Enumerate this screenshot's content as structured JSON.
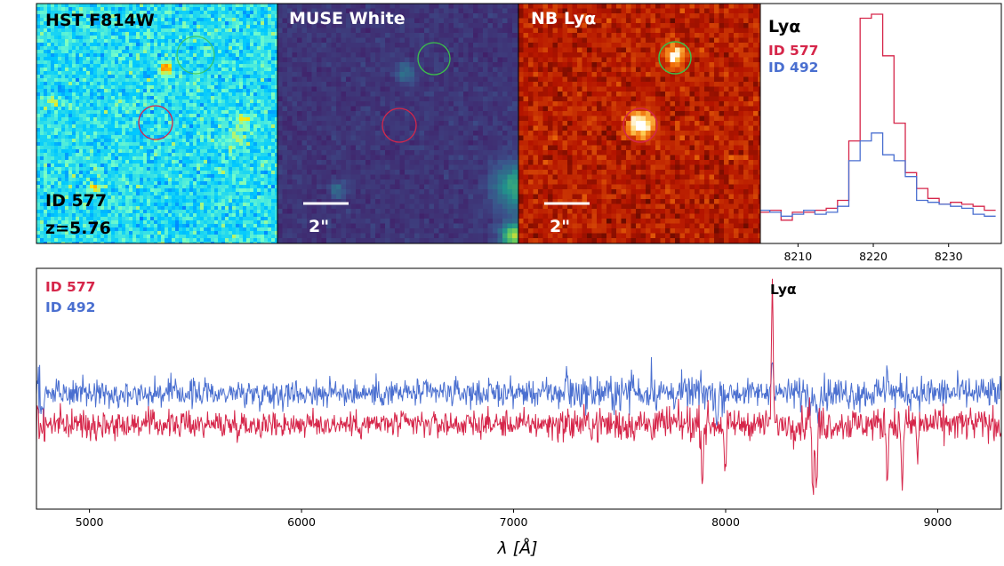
{
  "panels": {
    "hst": {
      "title": "HST F814W",
      "id_label": "ID 577",
      "redshift": "z=5.76"
    },
    "muse": {
      "title": "MUSE White",
      "scale": "2\""
    },
    "nb": {
      "title": "NB Lyα",
      "scale": "2\""
    }
  },
  "colors": {
    "id577": "#d6264a",
    "id492": "#4a6fd0",
    "aperture_red": "#d6264a",
    "aperture_green": "#3cc04a"
  },
  "chart_data": [
    {
      "type": "line",
      "name": "lya-zoom",
      "title": "Lyα",
      "xlim": [
        8205,
        8237
      ],
      "xticks": [
        8210,
        8220,
        8230
      ],
      "legend": [
        "ID 577",
        "ID 492"
      ],
      "legend_position": "top-left",
      "series": [
        {
          "name": "ID 577",
          "drawstyle": "steps",
          "x": [
            8205.5,
            8207,
            8208.5,
            8210,
            8211.5,
            8213,
            8214.5,
            8216,
            8217.5,
            8219,
            8220.5,
            8222,
            8223.5,
            8225,
            8226.5,
            8228,
            8229.5,
            8231,
            8232.5,
            8234,
            8235.5
          ],
          "y": [
            0.0,
            0.01,
            -0.04,
            0.0,
            0.0,
            0.01,
            0.02,
            0.06,
            0.36,
            0.98,
            1.0,
            0.79,
            0.45,
            0.2,
            0.12,
            0.07,
            0.04,
            0.05,
            0.04,
            0.03,
            0.01
          ]
        },
        {
          "name": "ID 492",
          "drawstyle": "steps",
          "x": [
            8205.5,
            8207,
            8208.5,
            8210,
            8211.5,
            8213,
            8214.5,
            8216,
            8217.5,
            8219,
            8220.5,
            8222,
            8223.5,
            8225,
            8226.5,
            8228,
            8229.5,
            8231,
            8232.5,
            8234,
            8235.5
          ],
          "y": [
            0.01,
            0.0,
            -0.02,
            -0.01,
            0.01,
            -0.01,
            0.0,
            0.03,
            0.26,
            0.36,
            0.4,
            0.29,
            0.26,
            0.18,
            0.06,
            0.05,
            0.04,
            0.03,
            0.02,
            -0.01,
            -0.02
          ]
        }
      ]
    },
    {
      "type": "line",
      "name": "full-spectrum",
      "xlabel": "λ [Å]",
      "xlim": [
        4750,
        9300
      ],
      "xticks": [
        5000,
        6000,
        7000,
        8000,
        9000
      ],
      "annotation": {
        "text": "Lyα",
        "x": 8220
      },
      "legend": [
        "ID 577",
        "ID 492"
      ],
      "legend_position": "top-left",
      "series": [
        {
          "name": "ID 577",
          "baseline": 0,
          "noise": 0.85,
          "features": [
            [
              8220,
              10.0
            ],
            [
              8395,
              1.5
            ],
            [
              8412,
              -5.6
            ],
            [
              8428,
              -5.0
            ],
            [
              7890,
              -4.2
            ],
            [
              7998,
              -4.3
            ],
            [
              8762,
              -3.6
            ],
            [
              8832,
              -4.8
            ],
            [
              8905,
              -2.3
            ]
          ]
        },
        {
          "name": "ID 492",
          "baseline": 2.2,
          "noise": 0.85,
          "features": [
            [
              8220,
              3.2
            ],
            [
              8762,
              2.3
            ],
            [
              7250,
              1.6
            ],
            [
              7560,
              1.4
            ],
            [
              7650,
              1.2
            ],
            [
              7960,
              -2.6
            ],
            [
              8400,
              -1.5
            ],
            [
              8440,
              -1.6
            ]
          ]
        }
      ]
    }
  ]
}
